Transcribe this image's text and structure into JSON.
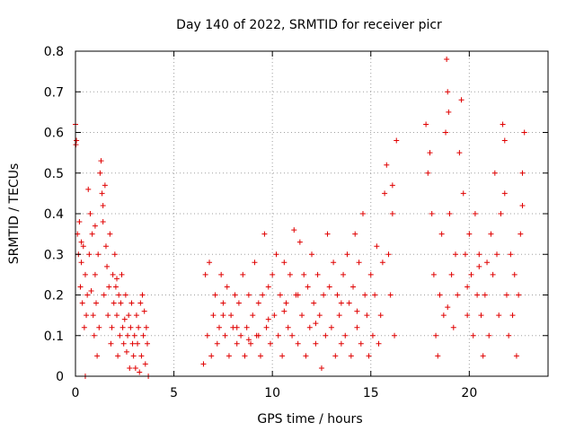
{
  "chart_data": {
    "type": "scatter",
    "title": "Day 140 of 2022, SRMTID for receiver picr",
    "xlabel": "GPS time / hours",
    "ylabel": "SRMTID / TECUs",
    "xlim": [
      0,
      24
    ],
    "ylim": [
      0,
      0.8
    ],
    "xticks": [
      0,
      5,
      10,
      15,
      20
    ],
    "yticks": [
      0,
      0.1,
      0.2,
      0.3,
      0.4,
      0.5,
      0.6,
      0.7,
      0.8
    ],
    "xtick_labels": [
      "0",
      "5",
      "10",
      "15",
      "20"
    ],
    "ytick_labels": [
      "0",
      "0.1",
      "0.2",
      "0.3",
      "0.4",
      "0.5",
      "0.6",
      "0.7",
      "0.8"
    ],
    "grid": true,
    "marker": "+",
    "color": "#e00000",
    "series": [
      {
        "name": "SRMTID",
        "points": [
          [
            0.0,
            0.62
          ],
          [
            0.02,
            0.57
          ],
          [
            0.05,
            0.58
          ],
          [
            0.1,
            0.35
          ],
          [
            0.15,
            0.3
          ],
          [
            0.2,
            0.38
          ],
          [
            0.25,
            0.22
          ],
          [
            0.3,
            0.28
          ],
          [
            0.35,
            0.18
          ],
          [
            0.4,
            0.32
          ],
          [
            0.45,
            0.12
          ],
          [
            0.5,
            0.25
          ],
          [
            0.55,
            0.15
          ],
          [
            0.6,
            0.2
          ],
          [
            0.65,
            0.46
          ],
          [
            0.7,
            0.3
          ],
          [
            0.75,
            0.4
          ],
          [
            0.8,
            0.21
          ],
          [
            0.85,
            0.35
          ],
          [
            0.9,
            0.15
          ],
          [
            0.95,
            0.1
          ],
          [
            1.0,
            0.25
          ],
          [
            1.05,
            0.18
          ],
          [
            1.1,
            0.05
          ],
          [
            1.15,
            0.3
          ],
          [
            1.2,
            0.12
          ],
          [
            1.25,
            0.5
          ],
          [
            1.3,
            0.53
          ],
          [
            1.35,
            0.45
          ],
          [
            1.4,
            0.38
          ],
          [
            1.45,
            0.2
          ],
          [
            1.5,
            0.47
          ],
          [
            1.55,
            0.32
          ],
          [
            1.6,
            0.27
          ],
          [
            1.65,
            0.15
          ],
          [
            1.7,
            0.22
          ],
          [
            1.75,
            0.35
          ],
          [
            1.8,
            0.08
          ],
          [
            1.85,
            0.12
          ],
          [
            1.9,
            0.25
          ],
          [
            1.95,
            0.18
          ],
          [
            2.0,
            0.3
          ],
          [
            2.05,
            0.22
          ],
          [
            2.1,
            0.15
          ],
          [
            2.15,
            0.05
          ],
          [
            2.2,
            0.2
          ],
          [
            2.25,
            0.1
          ],
          [
            2.3,
            0.18
          ],
          [
            2.35,
            0.25
          ],
          [
            2.4,
            0.12
          ],
          [
            2.45,
            0.08
          ],
          [
            2.5,
            0.14
          ],
          [
            2.55,
            0.2
          ],
          [
            2.6,
            0.06
          ],
          [
            2.65,
            0.1
          ],
          [
            2.7,
            0.15
          ],
          [
            2.75,
            0.02
          ],
          [
            2.8,
            0.12
          ],
          [
            2.85,
            0.18
          ],
          [
            2.9,
            0.08
          ],
          [
            2.95,
            0.05
          ],
          [
            3.0,
            0.1
          ],
          [
            3.05,
            0.02
          ],
          [
            3.1,
            0.15
          ],
          [
            3.15,
            0.08
          ],
          [
            3.2,
            0.12
          ],
          [
            3.25,
            0.01
          ],
          [
            3.3,
            0.18
          ],
          [
            3.35,
            0.05
          ],
          [
            3.4,
            0.2
          ],
          [
            3.45,
            0.1
          ],
          [
            3.5,
            0.16
          ],
          [
            3.55,
            0.03
          ],
          [
            3.6,
            0.12
          ],
          [
            3.65,
            0.08
          ],
          [
            3.7,
            0.0
          ],
          [
            0.5,
            0.0
          ],
          [
            1.0,
            0.37
          ],
          [
            1.4,
            0.42
          ],
          [
            0.3,
            0.33
          ],
          [
            2.1,
            0.24
          ],
          [
            6.5,
            0.03
          ],
          [
            6.6,
            0.25
          ],
          [
            6.7,
            0.1
          ],
          [
            6.8,
            0.28
          ],
          [
            6.9,
            0.05
          ],
          [
            7.0,
            0.15
          ],
          [
            7.1,
            0.2
          ],
          [
            7.2,
            0.08
          ],
          [
            7.3,
            0.12
          ],
          [
            7.4,
            0.25
          ],
          [
            7.5,
            0.18
          ],
          [
            7.6,
            0.1
          ],
          [
            7.7,
            0.22
          ],
          [
            7.8,
            0.05
          ],
          [
            7.9,
            0.15
          ],
          [
            8.0,
            0.12
          ],
          [
            8.1,
            0.2
          ],
          [
            8.2,
            0.08
          ],
          [
            8.3,
            0.18
          ],
          [
            8.4,
            0.1
          ],
          [
            8.5,
            0.25
          ],
          [
            8.6,
            0.05
          ],
          [
            8.7,
            0.12
          ],
          [
            8.8,
            0.2
          ],
          [
            8.9,
            0.08
          ],
          [
            9.0,
            0.15
          ],
          [
            9.1,
            0.28
          ],
          [
            9.2,
            0.1
          ],
          [
            9.3,
            0.18
          ],
          [
            9.4,
            0.05
          ],
          [
            9.5,
            0.2
          ],
          [
            9.6,
            0.35
          ],
          [
            9.7,
            0.12
          ],
          [
            9.8,
            0.22
          ],
          [
            9.9,
            0.08
          ],
          [
            10.0,
            0.25
          ],
          [
            10.1,
            0.15
          ],
          [
            10.2,
            0.3
          ],
          [
            10.3,
            0.1
          ],
          [
            10.4,
            0.2
          ],
          [
            10.5,
            0.05
          ],
          [
            10.6,
            0.28
          ],
          [
            10.7,
            0.18
          ],
          [
            10.8,
            0.12
          ],
          [
            10.9,
            0.25
          ],
          [
            11.0,
            0.1
          ],
          [
            11.1,
            0.36
          ],
          [
            11.2,
            0.2
          ],
          [
            11.3,
            0.08
          ],
          [
            11.4,
            0.33
          ],
          [
            11.5,
            0.15
          ],
          [
            11.6,
            0.25
          ],
          [
            11.7,
            0.05
          ],
          [
            11.8,
            0.22
          ],
          [
            11.9,
            0.12
          ],
          [
            12.0,
            0.3
          ],
          [
            12.1,
            0.18
          ],
          [
            12.2,
            0.08
          ],
          [
            12.3,
            0.25
          ],
          [
            12.4,
            0.15
          ],
          [
            12.5,
            0.02
          ],
          [
            12.6,
            0.2
          ],
          [
            12.7,
            0.1
          ],
          [
            12.8,
            0.35
          ],
          [
            12.9,
            0.22
          ],
          [
            13.0,
            0.12
          ],
          [
            13.1,
            0.28
          ],
          [
            13.2,
            0.05
          ],
          [
            13.3,
            0.2
          ],
          [
            13.4,
            0.15
          ],
          [
            13.5,
            0.08
          ],
          [
            13.6,
            0.25
          ],
          [
            13.7,
            0.1
          ],
          [
            13.8,
            0.3
          ],
          [
            13.9,
            0.18
          ],
          [
            14.0,
            0.05
          ],
          [
            14.1,
            0.22
          ],
          [
            14.2,
            0.35
          ],
          [
            14.3,
            0.12
          ],
          [
            14.4,
            0.28
          ],
          [
            14.5,
            0.08
          ],
          [
            14.6,
            0.4
          ],
          [
            14.7,
            0.2
          ],
          [
            14.8,
            0.15
          ],
          [
            14.9,
            0.05
          ],
          [
            15.0,
            0.25
          ],
          [
            15.1,
            0.1
          ],
          [
            15.2,
            0.2
          ],
          [
            15.3,
            0.32
          ],
          [
            15.4,
            0.08
          ],
          [
            15.5,
            0.15
          ],
          [
            15.6,
            0.28
          ],
          [
            15.7,
            0.45
          ],
          [
            15.8,
            0.52
          ],
          [
            15.9,
            0.3
          ],
          [
            16.0,
            0.2
          ],
          [
            16.1,
            0.4
          ],
          [
            16.2,
            0.1
          ],
          [
            16.3,
            0.58
          ],
          [
            16.1,
            0.47
          ],
          [
            7.5,
            0.15
          ],
          [
            8.2,
            0.12
          ],
          [
            9.3,
            0.1
          ],
          [
            10.6,
            0.16
          ],
          [
            11.3,
            0.2
          ],
          [
            12.2,
            0.13
          ],
          [
            13.5,
            0.18
          ],
          [
            14.3,
            0.16
          ],
          [
            8.8,
            0.09
          ],
          [
            9.8,
            0.14
          ],
          [
            17.8,
            0.62
          ],
          [
            17.9,
            0.5
          ],
          [
            18.0,
            0.55
          ],
          [
            18.1,
            0.4
          ],
          [
            18.2,
            0.25
          ],
          [
            18.3,
            0.1
          ],
          [
            18.4,
            0.05
          ],
          [
            18.5,
            0.2
          ],
          [
            18.6,
            0.35
          ],
          [
            18.7,
            0.15
          ],
          [
            18.8,
            0.6
          ],
          [
            18.85,
            0.78
          ],
          [
            18.9,
            0.7
          ],
          [
            18.95,
            0.65
          ],
          [
            19.0,
            0.4
          ],
          [
            19.1,
            0.25
          ],
          [
            19.2,
            0.12
          ],
          [
            19.3,
            0.3
          ],
          [
            19.4,
            0.2
          ],
          [
            19.5,
            0.55
          ],
          [
            19.6,
            0.68
          ],
          [
            19.7,
            0.45
          ],
          [
            19.8,
            0.3
          ],
          [
            19.9,
            0.15
          ],
          [
            20.0,
            0.35
          ],
          [
            20.1,
            0.25
          ],
          [
            20.2,
            0.1
          ],
          [
            20.3,
            0.4
          ],
          [
            20.4,
            0.2
          ],
          [
            20.5,
            0.3
          ],
          [
            20.6,
            0.15
          ],
          [
            20.7,
            0.05
          ],
          [
            20.8,
            0.2
          ],
          [
            20.9,
            0.28
          ],
          [
            21.0,
            0.1
          ],
          [
            21.1,
            0.35
          ],
          [
            21.2,
            0.25
          ],
          [
            21.3,
            0.5
          ],
          [
            21.4,
            0.3
          ],
          [
            21.5,
            0.15
          ],
          [
            21.6,
            0.4
          ],
          [
            21.7,
            0.62
          ],
          [
            21.8,
            0.45
          ],
          [
            21.9,
            0.2
          ],
          [
            22.0,
            0.1
          ],
          [
            22.1,
            0.3
          ],
          [
            22.2,
            0.15
          ],
          [
            22.3,
            0.25
          ],
          [
            22.4,
            0.05
          ],
          [
            22.5,
            0.2
          ],
          [
            22.6,
            0.35
          ],
          [
            22.7,
            0.5
          ],
          [
            22.8,
            0.6
          ],
          [
            22.7,
            0.42
          ],
          [
            21.8,
            0.58
          ],
          [
            20.5,
            0.27
          ],
          [
            19.9,
            0.22
          ],
          [
            18.9,
            0.17
          ]
        ]
      }
    ]
  }
}
